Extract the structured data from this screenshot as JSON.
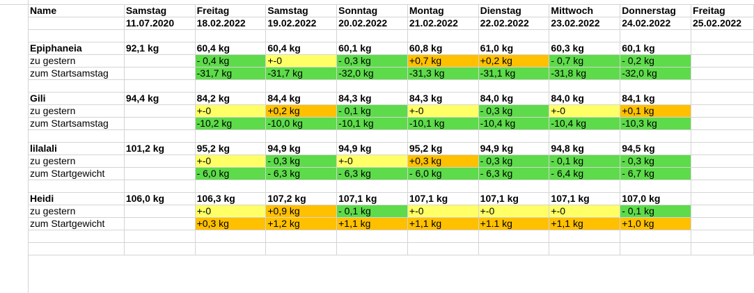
{
  "header": {
    "name_label": "Name",
    "columns": [
      {
        "day": "Samstag",
        "date": "11.07.2020"
      },
      {
        "day": "Freitag",
        "date": "18.02.2022"
      },
      {
        "day": "Samstag",
        "date": "19.02.2022"
      },
      {
        "day": "Sonntag",
        "date": "20.02.2022"
      },
      {
        "day": "Montag",
        "date": "21.02.2022"
      },
      {
        "day": "Dienstag",
        "date": "22.02.2022"
      },
      {
        "day": "Mittwoch",
        "date": "23.02.2022"
      },
      {
        "day": "Donnerstag",
        "date": "24.02.2022"
      },
      {
        "day": "Freitag",
        "date": "25.02.2022"
      }
    ]
  },
  "people": [
    {
      "name": "Epiphaneia",
      "weights": [
        "92,1 kg",
        "60,4 kg",
        "60,4 kg",
        "60,1 kg",
        "60,8 kg",
        "61,0 kg",
        "60,3 kg",
        "60,1 kg",
        ""
      ],
      "rows": [
        {
          "label": "zu gestern",
          "cells": [
            [
              "",
              ""
            ],
            [
              "- 0,4 kg",
              "g"
            ],
            [
              "+-0",
              "y"
            ],
            [
              "- 0,3 kg",
              "g"
            ],
            [
              "+0,7 kg",
              "o"
            ],
            [
              "+0,2 kg",
              "o"
            ],
            [
              "- 0,7 kg",
              "g"
            ],
            [
              "- 0,2 kg",
              "g"
            ],
            [
              "",
              ""
            ]
          ]
        },
        {
          "label": "zum Startsamstag",
          "cells": [
            [
              "",
              ""
            ],
            [
              "-31,7 kg",
              "g"
            ],
            [
              "-31,7 kg",
              "g"
            ],
            [
              "-32,0 kg",
              "g"
            ],
            [
              "-31,3 kg",
              "g"
            ],
            [
              "-31,1 kg",
              "g"
            ],
            [
              "-31,8 kg",
              "g"
            ],
            [
              "-32,0 kg",
              "g"
            ],
            [
              "",
              ""
            ]
          ]
        }
      ]
    },
    {
      "name": "Gili",
      "weights": [
        "94,4 kg",
        "84,2 kg",
        "84,4 kg",
        "84,3 kg",
        "84,3 kg",
        "84,0 kg",
        "84,0 kg",
        "84,1 kg",
        ""
      ],
      "rows": [
        {
          "label": "zu gestern",
          "cells": [
            [
              "",
              ""
            ],
            [
              "+-0",
              "y"
            ],
            [
              "+0,2 kg",
              "o"
            ],
            [
              "- 0,1 kg",
              "g"
            ],
            [
              "+-0",
              "y"
            ],
            [
              "- 0,3 kg",
              "g"
            ],
            [
              "+-0",
              "y"
            ],
            [
              "+0,1 kg",
              "o"
            ],
            [
              "",
              ""
            ]
          ]
        },
        {
          "label": "zum Startsamstag",
          "cells": [
            [
              "",
              ""
            ],
            [
              "-10,2 kg",
              "g"
            ],
            [
              "-10,0 kg",
              "g"
            ],
            [
              "-10,1 kg",
              "g"
            ],
            [
              "-10,1 kg",
              "g"
            ],
            [
              "-10,4 kg",
              "g"
            ],
            [
              "-10,4 kg",
              "g"
            ],
            [
              "-10,3 kg",
              "g"
            ],
            [
              "",
              ""
            ]
          ]
        }
      ]
    },
    {
      "name": "lilalali",
      "weights": [
        "101,2 kg",
        "95,2 kg",
        "94,9 kg",
        "94,9 kg",
        "95,2 kg",
        "94,9 kg",
        "94,8 kg",
        "94,5 kg",
        ""
      ],
      "rows": [
        {
          "label": "zu gestern",
          "cells": [
            [
              "",
              ""
            ],
            [
              "+-0",
              "y"
            ],
            [
              "- 0,3 kg",
              "g"
            ],
            [
              "+-0",
              "y"
            ],
            [
              "+0,3 kg",
              "o"
            ],
            [
              "- 0,3 kg",
              "g"
            ],
            [
              "- 0,1 kg",
              "g"
            ],
            [
              "- 0,3 kg",
              "g"
            ],
            [
              "",
              ""
            ]
          ]
        },
        {
          "label": "zum Startgewicht",
          "cells": [
            [
              "",
              ""
            ],
            [
              "- 6,0 kg",
              "g"
            ],
            [
              "- 6,3 kg",
              "g"
            ],
            [
              "- 6,3 kg",
              "g"
            ],
            [
              "- 6,0 kg",
              "g"
            ],
            [
              "- 6,3 kg",
              "g"
            ],
            [
              "- 6,4 kg",
              "g"
            ],
            [
              "- 6,7 kg",
              "g"
            ],
            [
              "",
              ""
            ]
          ]
        }
      ]
    },
    {
      "name": "Heidi",
      "weights": [
        "106,0 kg",
        "106,3 kg",
        "107,2 kg",
        "107,1 kg",
        "107,1 kg",
        "107,1 kg",
        "107,1 kg",
        "107,0 kg",
        ""
      ],
      "rows": [
        {
          "label": "zu gestern",
          "cells": [
            [
              "",
              ""
            ],
            [
              "+-0",
              "y"
            ],
            [
              "+0,9 kg",
              "o"
            ],
            [
              "- 0,1 kg",
              "g"
            ],
            [
              "+-0",
              "y"
            ],
            [
              "+-0",
              "y"
            ],
            [
              "+-0",
              "y"
            ],
            [
              "- 0,1 kg",
              "g"
            ],
            [
              "",
              ""
            ]
          ]
        },
        {
          "label": "zum Startgewicht",
          "cells": [
            [
              "",
              ""
            ],
            [
              "+0,3 kg",
              "o"
            ],
            [
              "+1,2 kg",
              "o"
            ],
            [
              "+1,1 kg",
              "o"
            ],
            [
              "+1,1 kg",
              "o"
            ],
            [
              "+1.1 kg",
              "o"
            ],
            [
              "+1,1 kg",
              "o"
            ],
            [
              "+1,0 kg",
              "o"
            ],
            [
              "",
              ""
            ]
          ]
        }
      ]
    }
  ]
}
